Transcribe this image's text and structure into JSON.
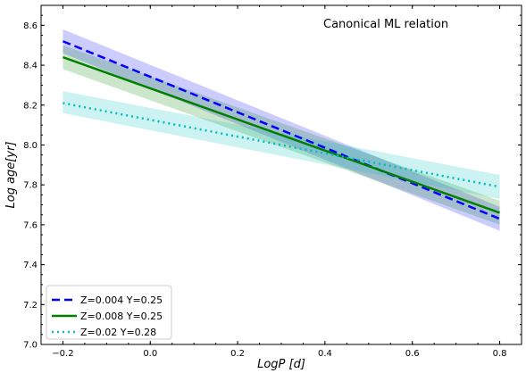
{
  "chart_data": {
    "type": "line",
    "annotation": "Canonical ML relation",
    "xlabel": "LogP [d]",
    "ylabel": "Log age[yr]",
    "xlim": [
      -0.25,
      0.85
    ],
    "ylim": [
      7.0,
      8.7
    ],
    "xticks": [
      "-0.2",
      "0.0",
      "0.2",
      "0.4",
      "0.6",
      "0.8"
    ],
    "yticks": [
      "7.0",
      "7.2",
      "7.4",
      "7.6",
      "7.8",
      "8.0",
      "8.2",
      "8.4",
      "8.6"
    ],
    "grid": false,
    "legend_position": "lower-left",
    "series": [
      {
        "name": "Z=0.004 Y=0.25",
        "color": "#0000ff",
        "linestyle": "dashed",
        "x": [
          -0.2,
          0.8
        ],
        "y": [
          8.52,
          7.63
        ],
        "band_lower": [
          8.46,
          7.57
        ],
        "band_upper": [
          8.58,
          7.69
        ]
      },
      {
        "name": "Z=0.008 Y=0.25",
        "color": "#008000",
        "linestyle": "solid",
        "x": [
          -0.2,
          0.8
        ],
        "y": [
          8.44,
          7.66
        ],
        "band_lower": [
          8.38,
          7.6
        ],
        "band_upper": [
          8.5,
          7.72
        ]
      },
      {
        "name": "Z=0.02 Y=0.28",
        "color": "#00bfbf",
        "linestyle": "dotted",
        "x": [
          -0.2,
          0.8
        ],
        "y": [
          8.21,
          7.79
        ],
        "band_lower": [
          8.16,
          7.73
        ],
        "band_upper": [
          8.27,
          7.85
        ]
      }
    ]
  }
}
